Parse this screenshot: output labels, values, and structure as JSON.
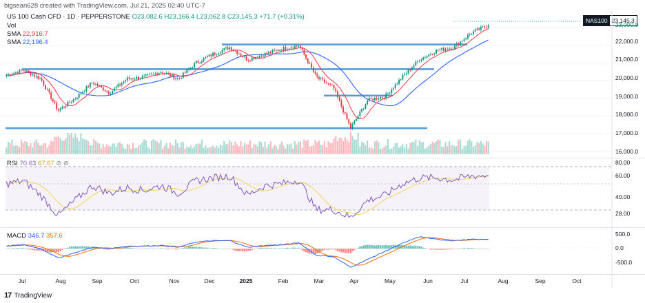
{
  "header": {
    "created_by": "bigsean628 created with TradingView.com, Jul 21, 2025 02:40 UTC-7",
    "instrument": "US 100 Cash CFD · 1D · PEPPERSTONE",
    "ohlc": "O23,082.6 H23,166.4 L23,062.8 C23,145.3 +71.7 (+0.31%)",
    "vol_label": "Vol",
    "sma1_label": "SMA",
    "sma1_value": "22,916.7",
    "sma2_label": "SMA",
    "sma2_value": "22,196.4"
  },
  "price_tag": {
    "symbol": "NAS100",
    "value": "23,145.3"
  },
  "price_axis": [
    "23,000.0",
    "22,000.0",
    "21,000.0",
    "20,000.0",
    "19,000.0",
    "18,000.0",
    "17,000.0",
    "16,000.0"
  ],
  "rsi": {
    "label": "RSI",
    "value1": "70.63",
    "value2": "67.67",
    "axis": [
      "80.00",
      "60.00",
      "40.00",
      "28.00"
    ]
  },
  "macd": {
    "label": "MACD",
    "value1": "346.7",
    "value2": "357.6",
    "axis": [
      "500.0",
      "0.0",
      "-500.0"
    ]
  },
  "time_axis": [
    "Jul",
    "Aug",
    "Sep",
    "Oct",
    "Nov",
    "Dec",
    "2025",
    "Feb",
    "Mar",
    "Apr",
    "May",
    "Jun",
    "Jul",
    "Aug",
    "Sep",
    "Oct"
  ],
  "footer": {
    "logo": "17",
    "brand": "TradingView"
  },
  "colors": {
    "up": "#089981",
    "down": "#f23645",
    "sma1": "#f23645",
    "sma2": "#2962ff",
    "hline": "#5b9bd5",
    "rsi": "#7e57c2",
    "rsi_ma": "#f4d35e",
    "macd": "#2962ff",
    "signal": "#ff6d00"
  },
  "chart_data": {
    "type": "candlestick",
    "title": "US 100 Cash CFD · 1D · PEPPERSTONE",
    "x": [
      "2024-07",
      "2024-07",
      "2024-07",
      "2024-08",
      "2024-08",
      "2024-08",
      "2024-09",
      "2024-09",
      "2024-10",
      "2024-10",
      "2024-11",
      "2024-11",
      "2024-12",
      "2024-12",
      "2025-01",
      "2025-01",
      "2025-02",
      "2025-02",
      "2025-03",
      "2025-03",
      "2025-04",
      "2025-04",
      "2025-04",
      "2025-05",
      "2025-05",
      "2025-06",
      "2025-06",
      "2025-07",
      "2025-07"
    ],
    "close": [
      20300,
      20600,
      20100,
      18300,
      19000,
      19900,
      19300,
      20100,
      20200,
      20500,
      20100,
      21000,
      21500,
      21900,
      21200,
      21500,
      21800,
      22000,
      20200,
      19600,
      17300,
      18900,
      19100,
      20200,
      21200,
      21700,
      21900,
      22700,
      23145.3
    ],
    "ylim": [
      15900,
      23400
    ],
    "horizontal_levels": [
      22050,
      20650,
      19150,
      17300
    ],
    "sma_fast": {
      "name": "SMA",
      "last": 22916.7
    },
    "sma_slow": {
      "name": "SMA",
      "last": 22196.4
    },
    "rsi": {
      "values": [
        62,
        65,
        50,
        29,
        45,
        60,
        52,
        58,
        55,
        60,
        52,
        65,
        68,
        70,
        50,
        60,
        62,
        66,
        35,
        35,
        27,
        45,
        50,
        62,
        68,
        68,
        66,
        70,
        70.63
      ],
      "ma_last": 67.67,
      "ylim": [
        24,
        84
      ]
    },
    "macd": {
      "macd": [
        100,
        150,
        0,
        -350,
        -150,
        50,
        0,
        100,
        100,
        120,
        50,
        250,
        300,
        300,
        50,
        120,
        150,
        220,
        -250,
        -300,
        -700,
        -400,
        -100,
        200,
        450,
        350,
        300,
        350,
        346.7
      ],
      "signal_last": 357.6,
      "ylim": [
        -800,
        650
      ]
    }
  }
}
